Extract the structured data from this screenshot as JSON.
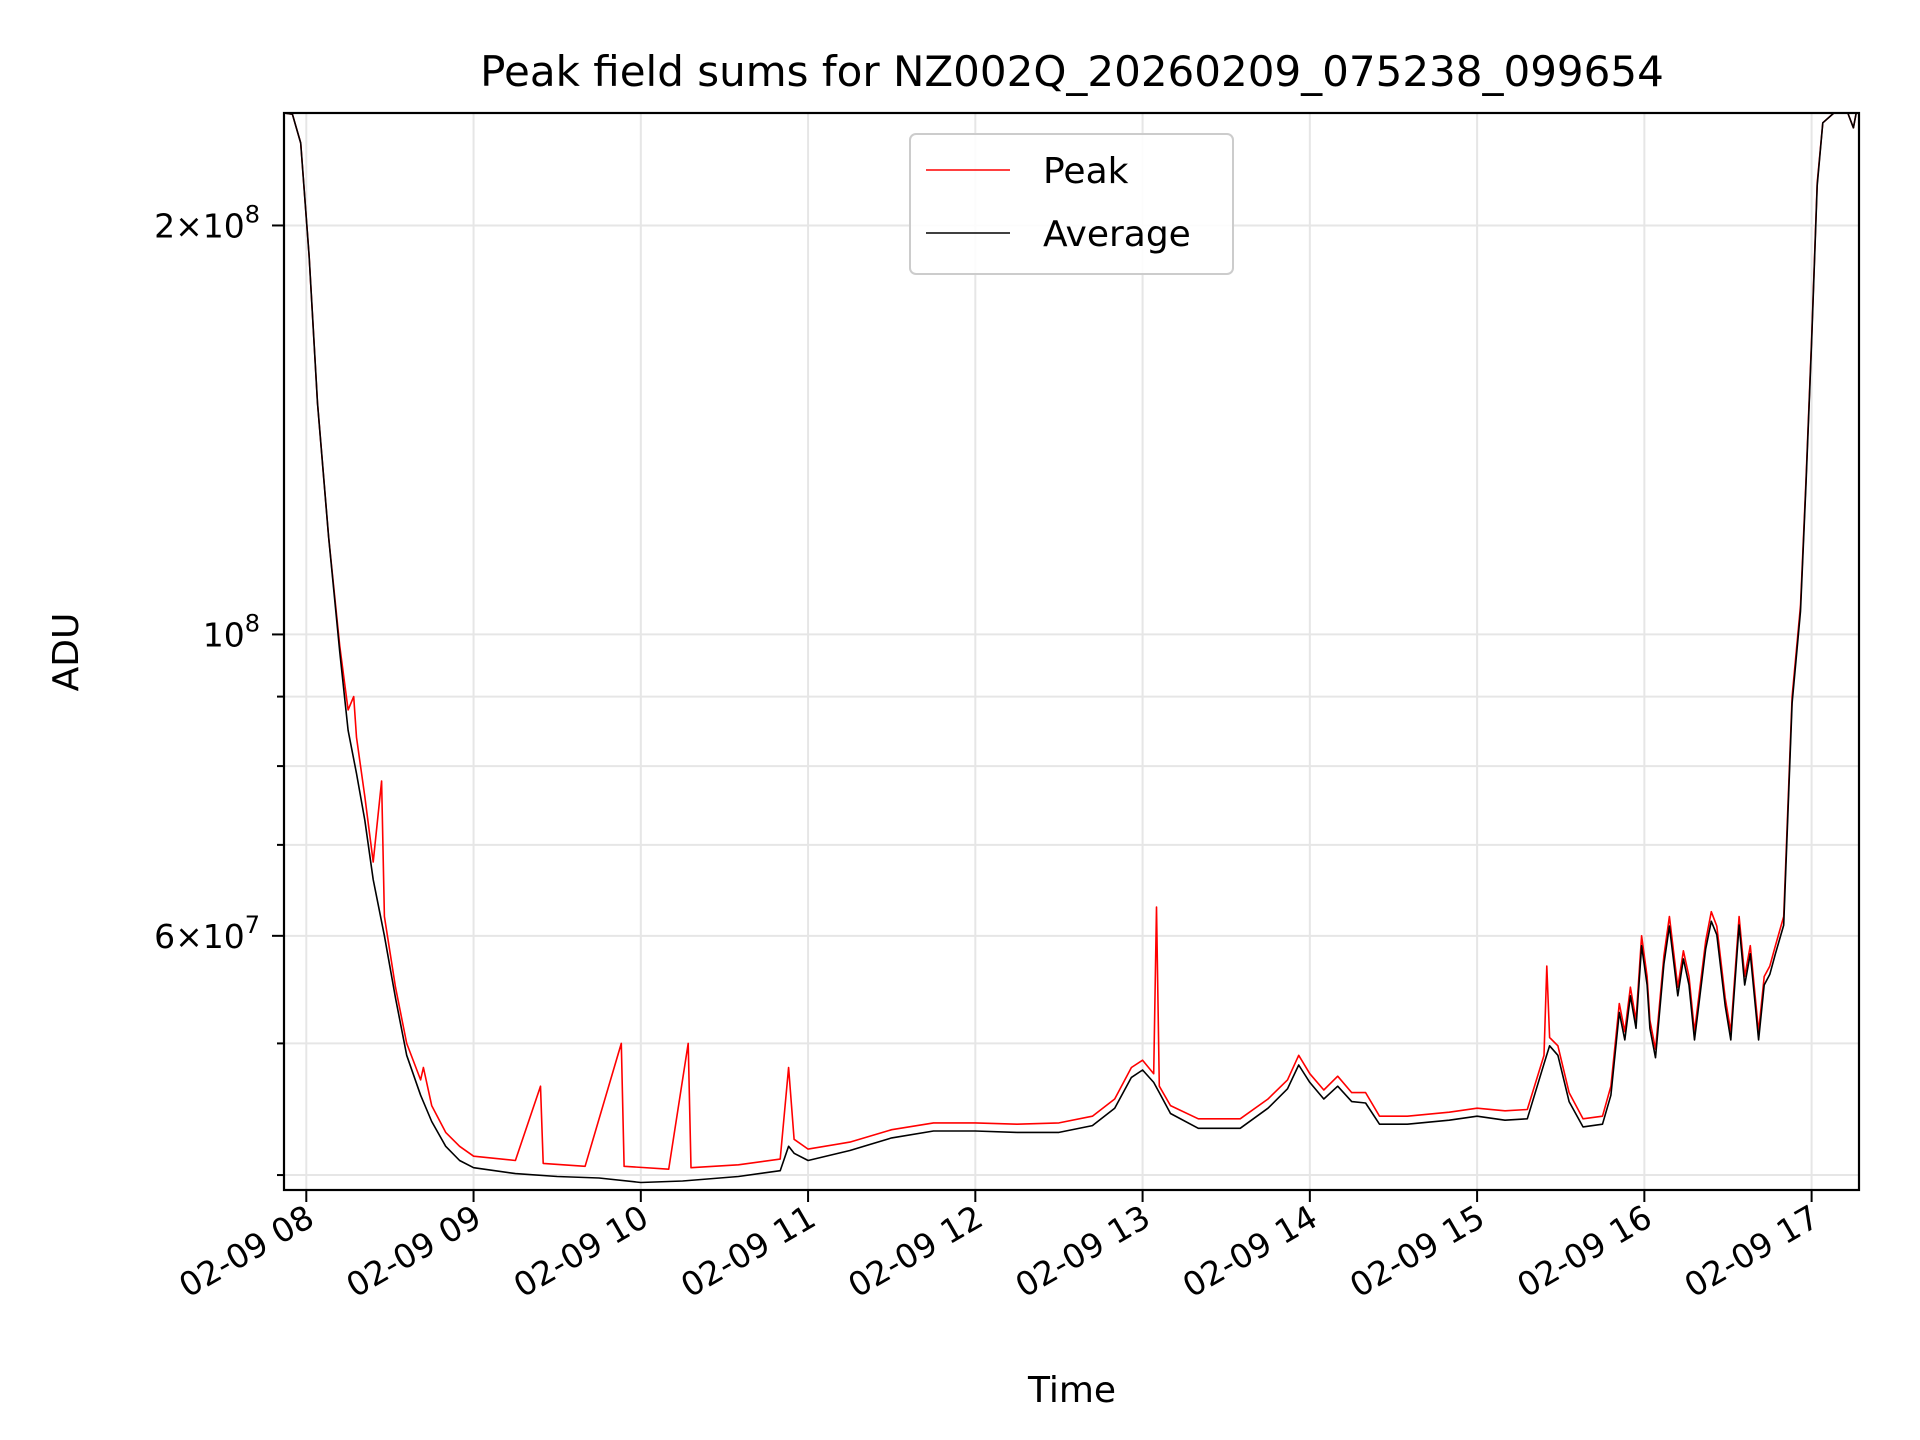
{
  "chart_data": {
    "type": "line",
    "title": "Peak field sums for NZ002Q_20260209_075238_099654",
    "xlabel": "Time",
    "ylabel": "ADU",
    "y_scale": "log",
    "ylim": [
      39000000,
      242000000
    ],
    "xlim": [
      "2026-02-09 07:52",
      "2026-02-09 17:17"
    ],
    "x_ticks": [
      {
        "value": "2026-02-09 08:00",
        "label": "02-09 08"
      },
      {
        "value": "2026-02-09 09:00",
        "label": "02-09 09"
      },
      {
        "value": "2026-02-09 10:00",
        "label": "02-09 10"
      },
      {
        "value": "2026-02-09 11:00",
        "label": "02-09 11"
      },
      {
        "value": "2026-02-09 12:00",
        "label": "02-09 12"
      },
      {
        "value": "2026-02-09 13:00",
        "label": "02-09 13"
      },
      {
        "value": "2026-02-09 14:00",
        "label": "02-09 14"
      },
      {
        "value": "2026-02-09 15:00",
        "label": "02-09 15"
      },
      {
        "value": "2026-02-09 16:00",
        "label": "02-09 16"
      },
      {
        "value": "2026-02-09 17:00",
        "label": "02-09 17"
      }
    ],
    "y_major_ticks": [
      {
        "value": 200000000,
        "label_base": "2×10",
        "label_exp": "8"
      },
      {
        "value": 100000000,
        "label_base": "10",
        "label_exp": "8"
      },
      {
        "value": 60000000,
        "label_base": "6×10",
        "label_exp": "7"
      }
    ],
    "y_minor_ticks": [
      40000000,
      50000000,
      70000000,
      80000000,
      90000000
    ],
    "grid": true,
    "legend_position": "top-center",
    "series": [
      {
        "name": "Peak",
        "color": "#ff0000",
        "points": [
          [
            "2026-02-09 07:52",
            242000000
          ],
          [
            "2026-02-09 07:55",
            241500000
          ],
          [
            "2026-02-09 07:58",
            230000000
          ],
          [
            "2026-02-09 08:01",
            190000000
          ],
          [
            "2026-02-09 08:04",
            148000000
          ],
          [
            "2026-02-09 08:08",
            118000000
          ],
          [
            "2026-02-09 08:12",
            98000000
          ],
          [
            "2026-02-09 08:15",
            88000000
          ],
          [
            "2026-02-09 08:17",
            90000000
          ],
          [
            "2026-02-09 08:18",
            84000000
          ],
          [
            "2026-02-09 08:21",
            76000000
          ],
          [
            "2026-02-09 08:24",
            68000000
          ],
          [
            "2026-02-09 08:27",
            78000000
          ],
          [
            "2026-02-09 08:28",
            62000000
          ],
          [
            "2026-02-09 08:32",
            55000000
          ],
          [
            "2026-02-09 08:36",
            50000000
          ],
          [
            "2026-02-09 08:41",
            47000000
          ],
          [
            "2026-02-09 08:42",
            48000000
          ],
          [
            "2026-02-09 08:45",
            45000000
          ],
          [
            "2026-02-09 08:50",
            43000000
          ],
          [
            "2026-02-09 08:55",
            42000000
          ],
          [
            "2026-02-09 09:00",
            41300000
          ],
          [
            "2026-02-09 09:15",
            41000000
          ],
          [
            "2026-02-09 09:24",
            46500000
          ],
          [
            "2026-02-09 09:25",
            40800000
          ],
          [
            "2026-02-09 09:40",
            40600000
          ],
          [
            "2026-02-09 09:53",
            50000000
          ],
          [
            "2026-02-09 09:54",
            40600000
          ],
          [
            "2026-02-09 10:10",
            40400000
          ],
          [
            "2026-02-09 10:17",
            50000000
          ],
          [
            "2026-02-09 10:18",
            40500000
          ],
          [
            "2026-02-09 10:35",
            40700000
          ],
          [
            "2026-02-09 10:50",
            41100000
          ],
          [
            "2026-02-09 10:53",
            48000000
          ],
          [
            "2026-02-09 10:55",
            42500000
          ],
          [
            "2026-02-09 11:00",
            41800000
          ],
          [
            "2026-02-09 11:15",
            42300000
          ],
          [
            "2026-02-09 11:30",
            43200000
          ],
          [
            "2026-02-09 11:45",
            43700000
          ],
          [
            "2026-02-09 12:00",
            43700000
          ],
          [
            "2026-02-09 12:15",
            43600000
          ],
          [
            "2026-02-09 12:30",
            43700000
          ],
          [
            "2026-02-09 12:42",
            44200000
          ],
          [
            "2026-02-09 12:50",
            45500000
          ],
          [
            "2026-02-09 12:56",
            48000000
          ],
          [
            "2026-02-09 13:00",
            48600000
          ],
          [
            "2026-02-09 13:04",
            47500000
          ],
          [
            "2026-02-09 13:05",
            63000000
          ],
          [
            "2026-02-09 13:06",
            46500000
          ],
          [
            "2026-02-09 13:10",
            45000000
          ],
          [
            "2026-02-09 13:20",
            44000000
          ],
          [
            "2026-02-09 13:35",
            44000000
          ],
          [
            "2026-02-09 13:45",
            45500000
          ],
          [
            "2026-02-09 13:52",
            47000000
          ],
          [
            "2026-02-09 13:56",
            49000000
          ],
          [
            "2026-02-09 14:00",
            47500000
          ],
          [
            "2026-02-09 14:05",
            46200000
          ],
          [
            "2026-02-09 14:10",
            47300000
          ],
          [
            "2026-02-09 14:15",
            46000000
          ],
          [
            "2026-02-09 14:20",
            46000000
          ],
          [
            "2026-02-09 14:25",
            44200000
          ],
          [
            "2026-02-09 14:35",
            44200000
          ],
          [
            "2026-02-09 14:50",
            44500000
          ],
          [
            "2026-02-09 15:00",
            44800000
          ],
          [
            "2026-02-09 15:10",
            44600000
          ],
          [
            "2026-02-09 15:18",
            44700000
          ],
          [
            "2026-02-09 15:24",
            49000000
          ],
          [
            "2026-02-09 15:25",
            57000000
          ],
          [
            "2026-02-09 15:26",
            50500000
          ],
          [
            "2026-02-09 15:29",
            49800000
          ],
          [
            "2026-02-09 15:33",
            46000000
          ],
          [
            "2026-02-09 15:38",
            44000000
          ],
          [
            "2026-02-09 15:45",
            44200000
          ],
          [
            "2026-02-09 15:48",
            46500000
          ],
          [
            "2026-02-09 15:51",
            53500000
          ],
          [
            "2026-02-09 15:53",
            51000000
          ],
          [
            "2026-02-09 15:55",
            55000000
          ],
          [
            "2026-02-09 15:57",
            52000000
          ],
          [
            "2026-02-09 15:59",
            60000000
          ],
          [
            "2026-02-09 16:01",
            56000000
          ],
          [
            "2026-02-09 16:02",
            52000000
          ],
          [
            "2026-02-09 16:04",
            49500000
          ],
          [
            "2026-02-09 16:07",
            58000000
          ],
          [
            "2026-02-09 16:09",
            62000000
          ],
          [
            "2026-02-09 16:12",
            55000000
          ],
          [
            "2026-02-09 16:14",
            58500000
          ],
          [
            "2026-02-09 16:16",
            56000000
          ],
          [
            "2026-02-09 16:18",
            51000000
          ],
          [
            "2026-02-09 16:22",
            59500000
          ],
          [
            "2026-02-09 16:24",
            62500000
          ],
          [
            "2026-02-09 16:26",
            61000000
          ],
          [
            "2026-02-09 16:29",
            54000000
          ],
          [
            "2026-02-09 16:31",
            51000000
          ],
          [
            "2026-02-09 16:34",
            62000000
          ],
          [
            "2026-02-09 16:36",
            56000000
          ],
          [
            "2026-02-09 16:38",
            59000000
          ],
          [
            "2026-02-09 16:41",
            51000000
          ],
          [
            "2026-02-09 16:43",
            56000000
          ],
          [
            "2026-02-09 16:45",
            57000000
          ],
          [
            "2026-02-09 16:47",
            59000000
          ],
          [
            "2026-02-09 16:50",
            62000000
          ],
          [
            "2026-02-09 16:53",
            90000000
          ],
          [
            "2026-02-09 16:56",
            105000000
          ],
          [
            "2026-02-09 16:58",
            130000000
          ],
          [
            "2026-02-09 17:00",
            165000000
          ],
          [
            "2026-02-09 17:02",
            215000000
          ],
          [
            "2026-02-09 17:04",
            238000000
          ],
          [
            "2026-02-09 17:08",
            242000000
          ],
          [
            "2026-02-09 17:13",
            242000000
          ],
          [
            "2026-02-09 17:15",
            236000000
          ],
          [
            "2026-02-09 17:16",
            242000000
          ]
        ]
      },
      {
        "name": "Average",
        "color": "#000000",
        "points": [
          [
            "2026-02-09 07:52",
            242000000
          ],
          [
            "2026-02-09 07:55",
            241500000
          ],
          [
            "2026-02-09 07:58",
            230000000
          ],
          [
            "2026-02-09 08:01",
            190000000
          ],
          [
            "2026-02-09 08:04",
            148000000
          ],
          [
            "2026-02-09 08:08",
            118000000
          ],
          [
            "2026-02-09 08:12",
            97000000
          ],
          [
            "2026-02-09 08:15",
            85000000
          ],
          [
            "2026-02-09 08:18",
            79000000
          ],
          [
            "2026-02-09 08:21",
            73000000
          ],
          [
            "2026-02-09 08:24",
            66000000
          ],
          [
            "2026-02-09 08:28",
            60000000
          ],
          [
            "2026-02-09 08:32",
            54000000
          ],
          [
            "2026-02-09 08:36",
            49000000
          ],
          [
            "2026-02-09 08:41",
            45800000
          ],
          [
            "2026-02-09 08:45",
            43800000
          ],
          [
            "2026-02-09 08:50",
            42000000
          ],
          [
            "2026-02-09 08:55",
            41000000
          ],
          [
            "2026-02-09 09:00",
            40500000
          ],
          [
            "2026-02-09 09:15",
            40100000
          ],
          [
            "2026-02-09 09:30",
            39900000
          ],
          [
            "2026-02-09 09:45",
            39800000
          ],
          [
            "2026-02-09 10:00",
            39500000
          ],
          [
            "2026-02-09 10:15",
            39600000
          ],
          [
            "2026-02-09 10:35",
            39900000
          ],
          [
            "2026-02-09 10:50",
            40300000
          ],
          [
            "2026-02-09 10:53",
            42000000
          ],
          [
            "2026-02-09 10:55",
            41500000
          ],
          [
            "2026-02-09 11:00",
            41000000
          ],
          [
            "2026-02-09 11:15",
            41700000
          ],
          [
            "2026-02-09 11:30",
            42600000
          ],
          [
            "2026-02-09 11:45",
            43100000
          ],
          [
            "2026-02-09 12:00",
            43100000
          ],
          [
            "2026-02-09 12:15",
            43000000
          ],
          [
            "2026-02-09 12:30",
            43000000
          ],
          [
            "2026-02-09 12:42",
            43500000
          ],
          [
            "2026-02-09 12:50",
            44800000
          ],
          [
            "2026-02-09 12:56",
            47200000
          ],
          [
            "2026-02-09 13:00",
            47800000
          ],
          [
            "2026-02-09 13:04",
            46800000
          ],
          [
            "2026-02-09 13:06",
            46000000
          ],
          [
            "2026-02-09 13:10",
            44400000
          ],
          [
            "2026-02-09 13:20",
            43300000
          ],
          [
            "2026-02-09 13:35",
            43300000
          ],
          [
            "2026-02-09 13:45",
            44800000
          ],
          [
            "2026-02-09 13:52",
            46300000
          ],
          [
            "2026-02-09 13:56",
            48200000
          ],
          [
            "2026-02-09 14:00",
            46800000
          ],
          [
            "2026-02-09 14:05",
            45500000
          ],
          [
            "2026-02-09 14:10",
            46500000
          ],
          [
            "2026-02-09 14:15",
            45300000
          ],
          [
            "2026-02-09 14:20",
            45200000
          ],
          [
            "2026-02-09 14:25",
            43600000
          ],
          [
            "2026-02-09 14:35",
            43600000
          ],
          [
            "2026-02-09 14:50",
            43900000
          ],
          [
            "2026-02-09 15:00",
            44200000
          ],
          [
            "2026-02-09 15:10",
            43900000
          ],
          [
            "2026-02-09 15:18",
            44000000
          ],
          [
            "2026-02-09 15:24",
            48300000
          ],
          [
            "2026-02-09 15:26",
            49800000
          ],
          [
            "2026-02-09 15:29",
            49000000
          ],
          [
            "2026-02-09 15:33",
            45300000
          ],
          [
            "2026-02-09 15:38",
            43400000
          ],
          [
            "2026-02-09 15:45",
            43600000
          ],
          [
            "2026-02-09 15:48",
            45800000
          ],
          [
            "2026-02-09 15:51",
            52700000
          ],
          [
            "2026-02-09 15:53",
            50300000
          ],
          [
            "2026-02-09 15:55",
            54200000
          ],
          [
            "2026-02-09 15:57",
            51300000
          ],
          [
            "2026-02-09 15:59",
            59000000
          ],
          [
            "2026-02-09 16:01",
            55200000
          ],
          [
            "2026-02-09 16:02",
            51300000
          ],
          [
            "2026-02-09 16:04",
            48800000
          ],
          [
            "2026-02-09 16:07",
            57200000
          ],
          [
            "2026-02-09 16:09",
            61000000
          ],
          [
            "2026-02-09 16:12",
            54200000
          ],
          [
            "2026-02-09 16:14",
            57700000
          ],
          [
            "2026-02-09 16:16",
            55200000
          ],
          [
            "2026-02-09 16:18",
            50300000
          ],
          [
            "2026-02-09 16:22",
            58700000
          ],
          [
            "2026-02-09 16:24",
            61500000
          ],
          [
            "2026-02-09 16:26",
            60100000
          ],
          [
            "2026-02-09 16:29",
            53300000
          ],
          [
            "2026-02-09 16:31",
            50300000
          ],
          [
            "2026-02-09 16:34",
            61100000
          ],
          [
            "2026-02-09 16:36",
            55200000
          ],
          [
            "2026-02-09 16:38",
            58200000
          ],
          [
            "2026-02-09 16:41",
            50300000
          ],
          [
            "2026-02-09 16:43",
            55200000
          ],
          [
            "2026-02-09 16:45",
            56200000
          ],
          [
            "2026-02-09 16:47",
            58200000
          ],
          [
            "2026-02-09 16:50",
            61100000
          ],
          [
            "2026-02-09 16:53",
            89000000
          ],
          [
            "2026-02-09 16:56",
            104000000
          ],
          [
            "2026-02-09 16:58",
            129000000
          ],
          [
            "2026-02-09 17:00",
            164000000
          ],
          [
            "2026-02-09 17:02",
            214000000
          ],
          [
            "2026-02-09 17:04",
            238000000
          ],
          [
            "2026-02-09 17:08",
            242000000
          ],
          [
            "2026-02-09 17:13",
            242000000
          ],
          [
            "2026-02-09 17:15",
            236000000
          ],
          [
            "2026-02-09 17:16",
            242000000
          ]
        ]
      }
    ]
  }
}
